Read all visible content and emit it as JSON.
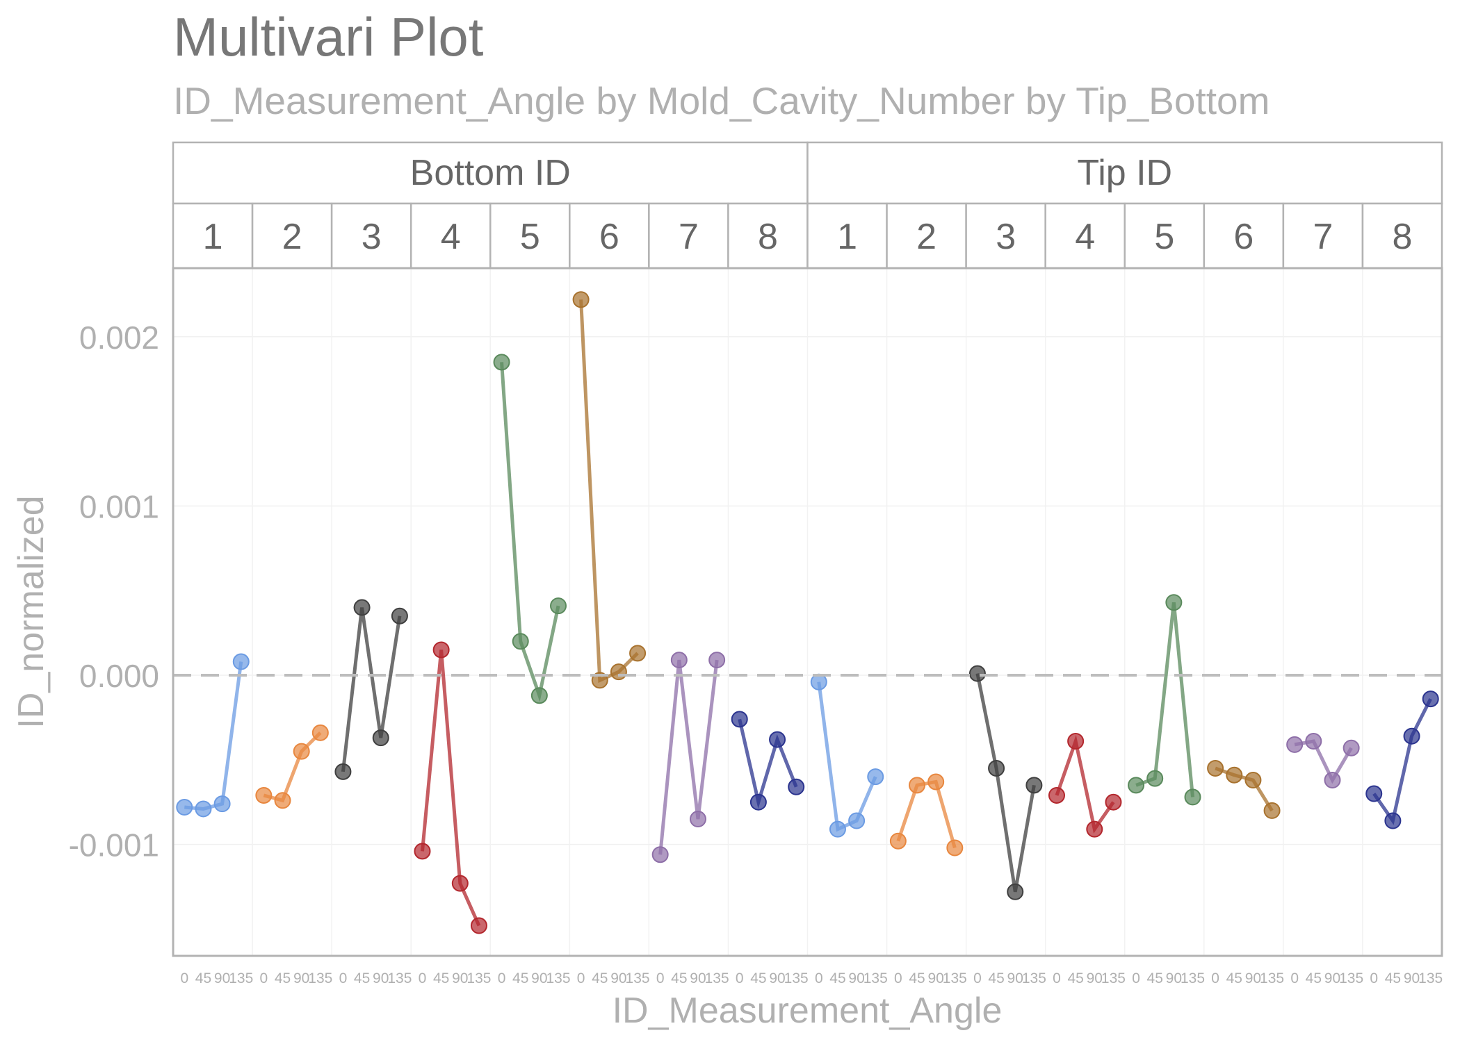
{
  "chart_data": {
    "type": "line",
    "title": "Multivari Plot",
    "subtitle": "ID_Measurement_Angle by Mold_Cavity_Number by Tip_Bottom",
    "xlabel": "ID_Measurement_Angle",
    "ylabel": "ID_normalized",
    "x_levels": [
      "0",
      "45",
      "90",
      "135"
    ],
    "y_ticks": [
      -0.001,
      0.0,
      0.001,
      0.002
    ],
    "y_tick_labels": [
      "-0.001",
      "0.000",
      "0.001",
      "0.002"
    ],
    "ylim": [
      -0.00165,
      0.00238
    ],
    "reference_line": 0,
    "grid": true,
    "legend": "none",
    "facets": [
      {
        "label": "Bottom ID",
        "cavities": [
          {
            "label": "1",
            "values": [
              -0.00078,
              -0.00079,
              -0.00076,
              8e-05
            ]
          },
          {
            "label": "2",
            "values": [
              -0.00071,
              -0.00074,
              -0.00045,
              -0.00034
            ]
          },
          {
            "label": "3",
            "values": [
              -0.00057,
              0.0004,
              -0.00037,
              0.00035
            ]
          },
          {
            "label": "4",
            "values": [
              -0.00104,
              0.00015,
              -0.00123,
              -0.00148
            ]
          },
          {
            "label": "5",
            "values": [
              0.00185,
              0.0002,
              -0.00012,
              0.00041
            ]
          },
          {
            "label": "6",
            "values": [
              0.00222,
              -3e-05,
              2e-05,
              0.00013
            ]
          },
          {
            "label": "7",
            "values": [
              -0.00106,
              9e-05,
              -0.00085,
              9e-05
            ]
          },
          {
            "label": "8",
            "values": [
              -0.00026,
              -0.00075,
              -0.00038,
              -0.00066
            ]
          }
        ]
      },
      {
        "label": "Tip ID",
        "cavities": [
          {
            "label": "1",
            "values": [
              -4e-05,
              -0.00091,
              -0.00086,
              -0.0006
            ]
          },
          {
            "label": "2",
            "values": [
              -0.00098,
              -0.00065,
              -0.00063,
              -0.00102
            ]
          },
          {
            "label": "3",
            "values": [
              1e-05,
              -0.00055,
              -0.00128,
              -0.00065
            ]
          },
          {
            "label": "4",
            "values": [
              -0.00071,
              -0.00039,
              -0.00091,
              -0.00075
            ]
          },
          {
            "label": "5",
            "values": [
              -0.00065,
              -0.00061,
              0.00043,
              -0.00072
            ]
          },
          {
            "label": "6",
            "values": [
              -0.00055,
              -0.00059,
              -0.00062,
              -0.0008
            ]
          },
          {
            "label": "7",
            "values": [
              -0.00041,
              -0.00039,
              -0.00062,
              -0.00043
            ]
          },
          {
            "label": "8",
            "values": [
              -0.0007,
              -0.00086,
              -0.00036,
              -0.00014
            ]
          }
        ]
      }
    ],
    "cavity_colors": [
      "#6b9be3",
      "#e8873f",
      "#3f3f3f",
      "#b3272d",
      "#5a8a5c",
      "#a8722e",
      "#8e6fa8",
      "#2b348f"
    ]
  }
}
